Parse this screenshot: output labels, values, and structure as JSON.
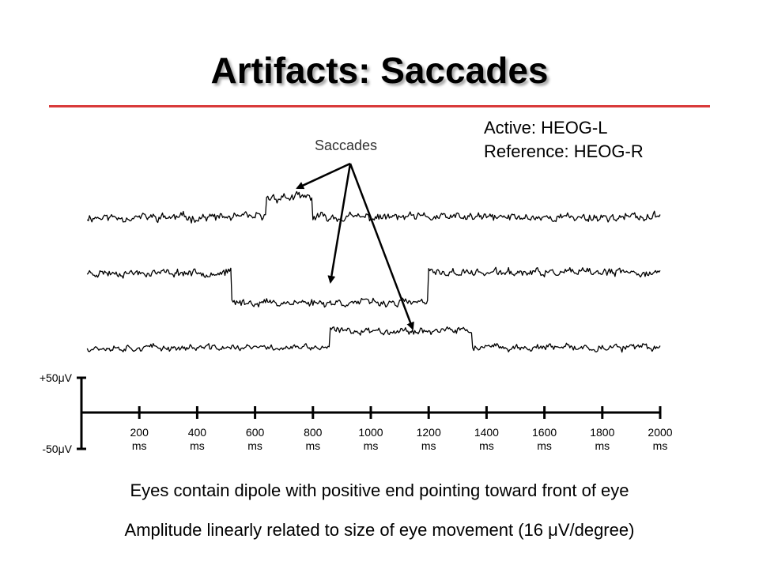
{
  "slide": {
    "title": "Artifacts: Saccades",
    "active_label": "Active: HEOG-L",
    "reference_label": "Reference: HEOG-R",
    "captions": [
      "Eyes contain dipole with positive end pointing toward front of eye",
      "Amplitude linearly related to size of eye movement (16 μV/degree)"
    ],
    "accent_color": "#d93a3a"
  },
  "chart_data": {
    "type": "line",
    "annotation": "Saccades",
    "amplitude_scale": {
      "top": "+50μV",
      "bottom": "-50μV",
      "range_uV": [
        -50,
        50
      ]
    },
    "xlim": [
      0,
      2000
    ],
    "x_ticks": [
      {
        "value": 200,
        "label": "200",
        "unit": "ms"
      },
      {
        "value": 400,
        "label": "400",
        "unit": "ms"
      },
      {
        "value": 600,
        "label": "600",
        "unit": "ms"
      },
      {
        "value": 800,
        "label": "800",
        "unit": "ms"
      },
      {
        "value": 1000,
        "label": "1000",
        "unit": "ms"
      },
      {
        "value": 1200,
        "label": "1200",
        "unit": "ms"
      },
      {
        "value": 1400,
        "label": "1400",
        "unit": "ms"
      },
      {
        "value": 1600,
        "label": "1600",
        "unit": "ms"
      },
      {
        "value": 1800,
        "label": "1800",
        "unit": "ms"
      },
      {
        "value": 2000,
        "label": "2000",
        "unit": "ms"
      }
    ],
    "series": [
      {
        "levels": [
          {
            "from": 0,
            "to": 640,
            "uV": 0
          },
          {
            "from": 640,
            "to": 800,
            "uV": 28
          },
          {
            "from": 800,
            "to": 2000,
            "uV": 0
          }
        ],
        "noise_uV": 9,
        "seed": 11
      },
      {
        "levels": [
          {
            "from": 0,
            "to": 520,
            "uV": 0
          },
          {
            "from": 520,
            "to": 1200,
            "uV": -42
          },
          {
            "from": 1200,
            "to": 2000,
            "uV": 0
          }
        ],
        "noise_uV": 8,
        "seed": 23
      },
      {
        "levels": [
          {
            "from": 0,
            "to": 860,
            "uV": 0
          },
          {
            "from": 860,
            "to": 1350,
            "uV": 24
          },
          {
            "from": 1350,
            "to": 2000,
            "uV": 0
          }
        ],
        "noise_uV": 7,
        "seed": 37
      }
    ]
  }
}
